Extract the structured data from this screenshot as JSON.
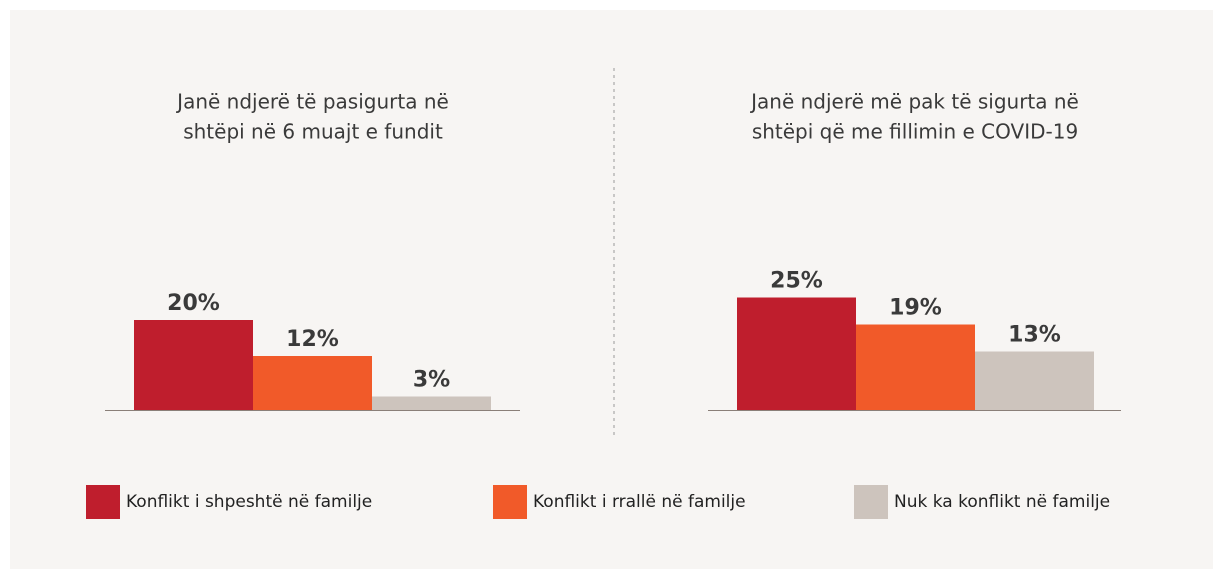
{
  "chart_data": [
    {
      "type": "bar",
      "title": [
        "Janë ndjerë të pasigurta në",
        "shtëpi në 6 muajt e fundit"
      ],
      "values": [
        20,
        12,
        3
      ],
      "value_labels": [
        "20%",
        "12%",
        "3%"
      ],
      "ylim": [
        0,
        30
      ]
    },
    {
      "type": "bar",
      "title": [
        "Janë ndjerë më pak të sigurta në",
        "shtëpi që me fillimin e COVID-19"
      ],
      "values": [
        25,
        19,
        13
      ],
      "value_labels": [
        "25%",
        "19%",
        "13%"
      ],
      "ylim": [
        0,
        30
      ]
    }
  ],
  "legend": {
    "entries": [
      {
        "name": "Konflikt i shpeshtë në familje",
        "color": "#bf1e2d"
      },
      {
        "name": "Konflikt i rrallë në familje",
        "color": "#f15a29"
      },
      {
        "name": "Nuk ka konflikt në familje",
        "color": "#cdc4bd"
      }
    ]
  }
}
